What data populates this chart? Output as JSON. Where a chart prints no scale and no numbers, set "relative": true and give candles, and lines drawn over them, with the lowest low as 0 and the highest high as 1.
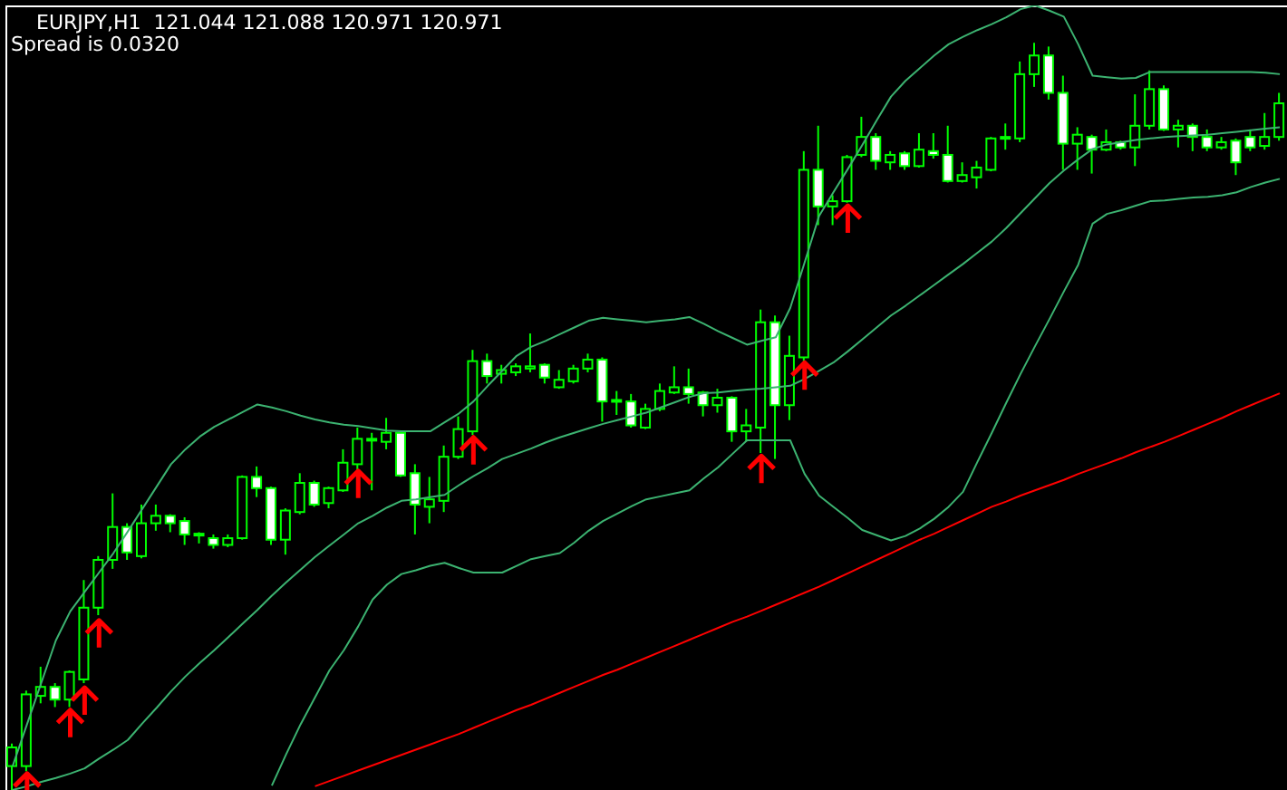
{
  "chart_data": {
    "type": "candlestick",
    "title": "EURJPY,H1  121.044 121.088 120.971 120.971",
    "subtitle": "Spread is 0.0320",
    "relative": true,
    "tick_labels": false,
    "color": "#00ff00",
    "categories": [
      null,
      null,
      null,
      null,
      null,
      null,
      null,
      null,
      null,
      null,
      null,
      null,
      null,
      null,
      null,
      null,
      null,
      null,
      null,
      null,
      null,
      null,
      null,
      null,
      null,
      null,
      null,
      null,
      null,
      null,
      null,
      null,
      null,
      null,
      null,
      null,
      null,
      null,
      null,
      null,
      null,
      null,
      null,
      null,
      null,
      null,
      null,
      null,
      null,
      null,
      null,
      null,
      null,
      null,
      null,
      null,
      null,
      null,
      null,
      null,
      null,
      null,
      null,
      null,
      null,
      null,
      null,
      null,
      null,
      null,
      null,
      null,
      null,
      null,
      null,
      null,
      null,
      null,
      null,
      null,
      null,
      null,
      null,
      null,
      null,
      null,
      null,
      null,
      null
    ],
    "ohlc": [
      [
        0.032,
        0.062,
        0,
        0.057
      ],
      [
        0.032,
        0.133,
        0.025,
        0.128
      ],
      [
        0.126,
        0.165,
        0.116,
        0.138
      ],
      [
        0.138,
        0.143,
        0.111,
        0.121
      ],
      [
        0.121,
        0.16,
        0.111,
        0.158
      ],
      [
        0.148,
        0.281,
        0.143,
        0.244
      ],
      [
        0.244,
        0.313,
        0.234,
        0.308
      ],
      [
        0.308,
        0.397,
        0.296,
        0.352
      ],
      [
        0.352,
        0.357,
        0.308,
        0.318
      ],
      [
        0.313,
        0.382,
        0.31,
        0.357
      ],
      [
        0.357,
        0.382,
        0.347,
        0.367
      ],
      [
        0.367,
        0.369,
        0.345,
        0.357
      ],
      [
        0.36,
        0.365,
        0.328,
        0.342
      ],
      [
        0.342,
        0.345,
        0.33,
        0.343
      ],
      [
        0.337,
        0.342,
        0.323,
        0.328
      ],
      [
        0.328,
        0.342,
        0.325,
        0.337
      ],
      [
        0.337,
        0.421,
        0.335,
        0.419
      ],
      [
        0.419,
        0.433,
        0.392,
        0.404
      ],
      [
        0.404,
        0.406,
        0.328,
        0.335
      ],
      [
        0.335,
        0.377,
        0.315,
        0.374
      ],
      [
        0.372,
        0.424,
        0.369,
        0.411
      ],
      [
        0.411,
        0.414,
        0.379,
        0.382
      ],
      [
        0.384,
        0.406,
        0.377,
        0.404
      ],
      [
        0.401,
        0.456,
        0.399,
        0.438
      ],
      [
        0.436,
        0.485,
        0.429,
        0.47
      ],
      [
        0.468,
        0.478,
        0.401,
        0.47
      ],
      [
        0.466,
        0.498,
        0.456,
        0.478
      ],
      [
        0.478,
        0.48,
        0.419,
        0.421
      ],
      [
        0.424,
        0.436,
        0.342,
        0.382
      ],
      [
        0.379,
        0.419,
        0.357,
        0.389
      ],
      [
        0.387,
        0.461,
        0.372,
        0.446
      ],
      [
        0.446,
        0.5,
        0.443,
        0.483
      ],
      [
        0.48,
        0.589,
        0.475,
        0.574
      ],
      [
        0.574,
        0.584,
        0.544,
        0.554
      ],
      [
        0.557,
        0.569,
        0.544,
        0.562
      ],
      [
        0.559,
        0.571,
        0.554,
        0.567
      ],
      [
        0.564,
        0.611,
        0.559,
        0.567
      ],
      [
        0.569,
        0.571,
        0.544,
        0.552
      ],
      [
        0.539,
        0.562,
        0.537,
        0.549
      ],
      [
        0.547,
        0.569,
        0.544,
        0.564
      ],
      [
        0.564,
        0.584,
        0.559,
        0.576
      ],
      [
        0.576,
        0.579,
        0.493,
        0.52
      ],
      [
        0.52,
        0.534,
        0.502,
        0.522
      ],
      [
        0.52,
        0.53,
        0.485,
        0.488
      ],
      [
        0.485,
        0.517,
        0.483,
        0.51
      ],
      [
        0.51,
        0.544,
        0.507,
        0.534
      ],
      [
        0.532,
        0.567,
        0.53,
        0.539
      ],
      [
        0.539,
        0.564,
        0.517,
        0.53
      ],
      [
        0.532,
        0.534,
        0.5,
        0.515
      ],
      [
        0.515,
        0.537,
        0.505,
        0.525
      ],
      [
        0.525,
        0.527,
        0.466,
        0.48
      ],
      [
        0.48,
        0.51,
        0.466,
        0.488
      ],
      [
        0.485,
        0.643,
        0.451,
        0.626
      ],
      [
        0.626,
        0.635,
        0.443,
        0.515
      ],
      [
        0.515,
        0.608,
        0.495,
        0.581
      ],
      [
        0.579,
        0.855,
        0.574,
        0.83
      ],
      [
        0.83,
        0.889,
        0.756,
        0.781
      ],
      [
        0.781,
        0.796,
        0.756,
        0.788
      ],
      [
        0.788,
        0.85,
        0.786,
        0.847
      ],
      [
        0.85,
        0.901,
        0.847,
        0.874
      ],
      [
        0.874,
        0.879,
        0.83,
        0.842
      ],
      [
        0.84,
        0.855,
        0.83,
        0.85
      ],
      [
        0.852,
        0.855,
        0.83,
        0.835
      ],
      [
        0.835,
        0.879,
        0.833,
        0.857
      ],
      [
        0.855,
        0.879,
        0.845,
        0.85
      ],
      [
        0.85,
        0.889,
        0.813,
        0.815
      ],
      [
        0.815,
        0.84,
        0.813,
        0.823
      ],
      [
        0.82,
        0.842,
        0.805,
        0.833
      ],
      [
        0.83,
        0.874,
        0.828,
        0.872
      ],
      [
        0.872,
        0.892,
        0.857,
        0.874
      ],
      [
        0.872,
        0.975,
        0.867,
        0.958
      ],
      [
        0.958,
        1,
        0.941,
        0.983
      ],
      [
        0.983,
        0.995,
        0.924,
        0.933
      ],
      [
        0.933,
        0.956,
        0.83,
        0.865
      ],
      [
        0.865,
        0.887,
        0.83,
        0.877
      ],
      [
        0.874,
        0.877,
        0.825,
        0.857
      ],
      [
        0.857,
        0.884,
        0.855,
        0.867
      ],
      [
        0.867,
        0.869,
        0.857,
        0.86
      ],
      [
        0.86,
        0.931,
        0.835,
        0.889
      ],
      [
        0.889,
        0.963,
        0.884,
        0.938
      ],
      [
        0.938,
        0.943,
        0.882,
        0.884
      ],
      [
        0.884,
        0.897,
        0.86,
        0.889
      ],
      [
        0.889,
        0.892,
        0.855,
        0.874
      ],
      [
        0.874,
        0.884,
        0.855,
        0.86
      ],
      [
        0.86,
        0.874,
        0.857,
        0.867
      ],
      [
        0.869,
        0.872,
        0.823,
        0.84
      ],
      [
        0.874,
        0.884,
        0.855,
        0.86
      ],
      [
        0.862,
        0.906,
        0.857,
        0.874
      ],
      [
        0.874,
        0.933,
        0.869,
        0.919
      ]
    ],
    "series": [
      {
        "type": "line",
        "color": "#3cb371",
        "values": [
          0.032,
          0.088,
          0.144,
          0.2,
          0.239,
          0.265,
          0.291,
          0.317,
          0.346,
          0.376,
          0.406,
          0.436,
          0.456,
          0.473,
          0.486,
          0.496,
          0.506,
          0.516,
          0.512,
          0.507,
          0.501,
          0.496,
          0.492,
          0.489,
          0.487,
          0.484,
          0.481,
          0.48,
          0.48,
          0.48,
          0.492,
          0.504,
          0.52,
          0.541,
          0.561,
          0.581,
          0.593,
          0.601,
          0.61,
          0.619,
          0.628,
          0.632,
          0.63,
          0.628,
          0.626,
          0.628,
          0.63,
          0.633,
          0.624,
          0.614,
          0.605,
          0.596,
          0.601,
          0.606,
          0.645,
          0.706,
          0.768,
          0.8,
          0.831,
          0.863,
          0.896,
          0.928,
          0.949,
          0.966,
          0.983,
          0.998,
          1.008,
          1.017,
          1.025,
          1.034,
          1.045,
          1.05,
          1.043,
          1.035,
          0.998,
          0.956,
          0.954,
          0.952,
          0.953,
          0.961,
          0.961,
          0.961,
          0.961,
          0.961,
          0.961,
          0.961,
          0.961,
          0.96,
          0.958
        ]
      },
      {
        "type": "line",
        "color": "#3cb371",
        "values": [
          0,
          0.005,
          0.011,
          0.016,
          0.022,
          0.029,
          0.042,
          0.054,
          0.067,
          0.089,
          0.11,
          0.132,
          0.152,
          0.17,
          0.187,
          0.205,
          0.223,
          0.241,
          0.26,
          0.278,
          0.295,
          0.312,
          0.327,
          0.342,
          0.357,
          0.367,
          0.378,
          0.387,
          0.389,
          0.392,
          0.395,
          0.408,
          0.42,
          0.431,
          0.443,
          0.45,
          0.457,
          0.465,
          0.472,
          0.478,
          0.484,
          0.49,
          0.495,
          0.5,
          0.505,
          0.512,
          0.519,
          0.526,
          0.531,
          0.532,
          0.534,
          0.536,
          0.537,
          0.539,
          0.541,
          0.55,
          0.561,
          0.572,
          0.587,
          0.603,
          0.619,
          0.635,
          0.648,
          0.662,
          0.676,
          0.69,
          0.704,
          0.719,
          0.734,
          0.752,
          0.772,
          0.792,
          0.812,
          0.829,
          0.844,
          0.858,
          0.864,
          0.867,
          0.87,
          0.872,
          0.874,
          0.875,
          0.876,
          0.877,
          0.879,
          0.881,
          0.883,
          0.885,
          0.887
        ]
      },
      {
        "type": "line",
        "color": "#3cb371",
        "values": [
          null,
          null,
          null,
          null,
          null,
          null,
          null,
          null,
          null,
          null,
          null,
          null,
          null,
          null,
          null,
          null,
          null,
          null,
          0.006,
          0.048,
          0.088,
          0.124,
          0.16,
          0.187,
          0.219,
          0.255,
          0.275,
          0.289,
          0.294,
          0.3,
          0.304,
          0.297,
          0.291,
          0.291,
          0.291,
          0.3,
          0.309,
          0.313,
          0.317,
          0.331,
          0.347,
          0.36,
          0.37,
          0.38,
          0.389,
          0.393,
          0.397,
          0.401,
          0.417,
          0.432,
          0.45,
          0.468,
          0.468,
          0.468,
          0.468,
          0.423,
          0.394,
          0.379,
          0.364,
          0.348,
          0.341,
          0.334,
          0.34,
          0.35,
          0.363,
          0.379,
          0.399,
          0.439,
          0.478,
          0.518,
          0.557,
          0.594,
          0.63,
          0.667,
          0.703,
          0.758,
          0.771,
          0.776,
          0.782,
          0.788,
          0.789,
          0.791,
          0.793,
          0.794,
          0.796,
          0.8,
          0.807,
          0.813,
          0.818
        ]
      },
      {
        "type": "line",
        "color": "#ff0000",
        "values": [
          null,
          null,
          null,
          null,
          null,
          null,
          null,
          null,
          null,
          null,
          null,
          null,
          null,
          null,
          null,
          null,
          null,
          null,
          null,
          null,
          null,
          0.005,
          0.012,
          0.019,
          0.026,
          0.033,
          0.04,
          0.047,
          0.054,
          0.061,
          0.068,
          0.075,
          0.083,
          0.091,
          0.099,
          0.107,
          0.114,
          0.122,
          0.13,
          0.138,
          0.146,
          0.154,
          0.161,
          0.169,
          0.177,
          0.185,
          0.193,
          0.201,
          0.209,
          0.217,
          0.225,
          0.232,
          0.24,
          0.248,
          0.256,
          0.264,
          0.272,
          0.281,
          0.29,
          0.299,
          0.308,
          0.317,
          0.326,
          0.335,
          0.343,
          0.352,
          0.361,
          0.37,
          0.379,
          0.386,
          0.394,
          0.401,
          0.408,
          0.415,
          0.423,
          0.43,
          0.437,
          0.444,
          0.452,
          0.459,
          0.466,
          0.474,
          0.482,
          0.49,
          0.498,
          0.507,
          0.515,
          0.523,
          0.531
        ]
      },
      {
        "type": "scatter",
        "color": "#ff0000",
        "values": [
          null,
          0.005,
          null,
          null,
          0.09,
          0.12,
          0.21,
          null,
          null,
          null,
          null,
          null,
          null,
          null,
          null,
          null,
          null,
          null,
          null,
          null,
          null,
          null,
          null,
          null,
          0.41,
          null,
          null,
          null,
          null,
          null,
          null,
          null,
          0.455,
          null,
          null,
          null,
          null,
          null,
          null,
          null,
          null,
          null,
          null,
          null,
          null,
          null,
          null,
          null,
          null,
          null,
          null,
          null,
          0.43,
          null,
          null,
          0.555,
          null,
          null,
          0.765,
          null,
          null,
          null,
          null,
          null,
          null,
          null,
          null,
          null,
          null,
          null,
          null,
          null,
          null,
          null,
          null,
          null,
          null,
          null,
          null,
          null,
          null,
          null,
          null,
          null,
          null,
          null,
          null,
          null,
          null
        ]
      }
    ]
  }
}
